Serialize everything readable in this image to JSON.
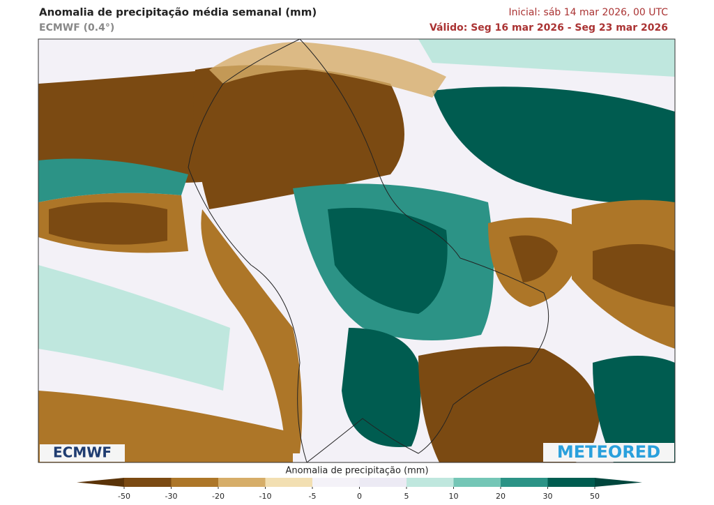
{
  "header": {
    "title": "Anomalia de precipitação média semanal (mm)",
    "model": "ECMWF (0.4°)",
    "initial": "Inicial:  sáb 14 mar 2026, 00 UTC",
    "valid": "Válido: Seg 16 mar 2026 - Seg 23 mar 2026"
  },
  "logos": {
    "left": "ECMWF",
    "right": "METEORED"
  },
  "colorbar": {
    "label": "Anomalia de precipitação (mm)",
    "ticks": [
      -50,
      -30,
      -20,
      -10,
      -5,
      0,
      5,
      10,
      20,
      30,
      50
    ],
    "colors": [
      "#7b4a12",
      "#ad7628",
      "#d6ad68",
      "#f2dfb2",
      "#f4f2f8",
      "#eceaf4",
      "#bfe7de",
      "#74c6b6",
      "#2c9386",
      "#005c50"
    ],
    "under_color": "#5a3308",
    "over_color": "#00463d"
  }
}
